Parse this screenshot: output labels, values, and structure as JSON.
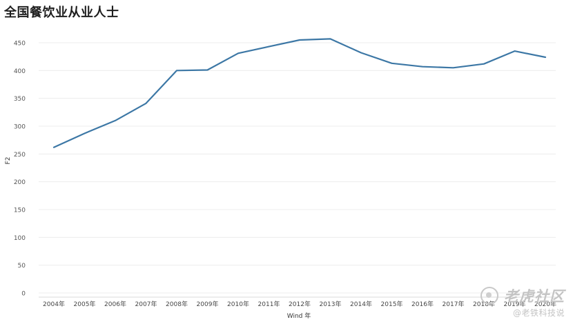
{
  "title": "全国餐饮业从业人士",
  "chart_data": {
    "type": "line",
    "title": "全国餐饮业从业人士",
    "xlabel": "Wind 年",
    "ylabel": "F2",
    "categories": [
      "2004年",
      "2005年",
      "2006年",
      "2007年",
      "2008年",
      "2009年",
      "2010年",
      "2011年",
      "2012年",
      "2013年",
      "2014年",
      "2015年",
      "2016年",
      "2017年",
      "2018年",
      "2019年",
      "2020年"
    ],
    "values": [
      262,
      287,
      310,
      341,
      400,
      401,
      431,
      443,
      455,
      457,
      432,
      413,
      407,
      405,
      412,
      435,
      424
    ],
    "ylim": [
      0,
      450
    ],
    "yticks": [
      0,
      50,
      100,
      150,
      200,
      250,
      300,
      350,
      400,
      450
    ],
    "grid": true,
    "line_color": "#3c77a5"
  },
  "watermark": {
    "main": "老虎社区",
    "sub": "@老铁科技说"
  }
}
